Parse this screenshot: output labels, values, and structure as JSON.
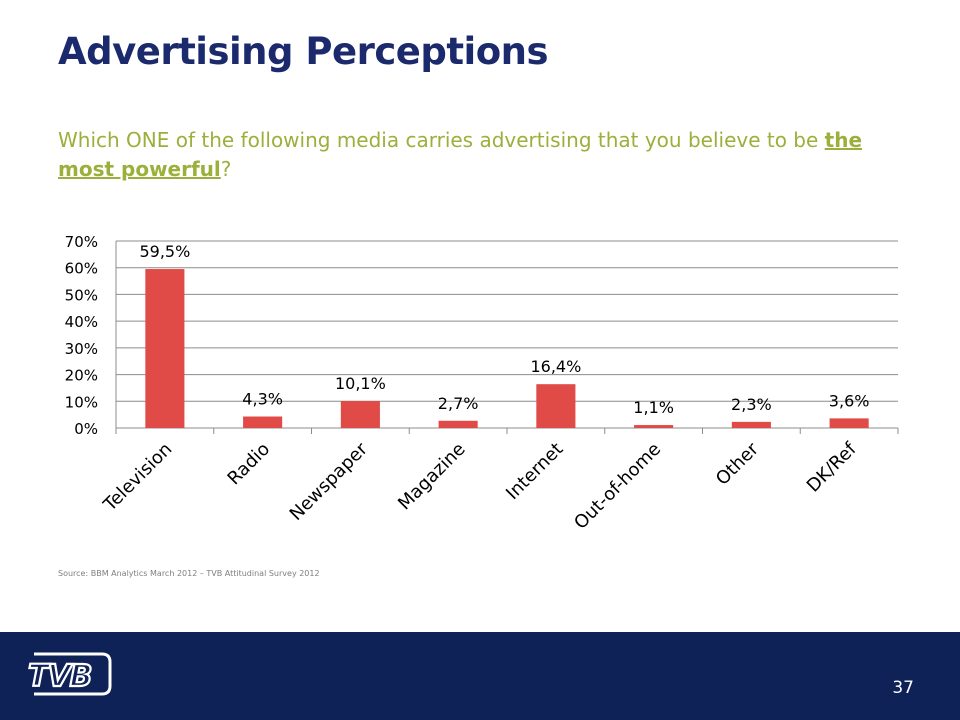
{
  "slide": {
    "title": "Advertising Perceptions",
    "question_before": "Which ONE of the following media carries advertising that you believe to be ",
    "question_emphasis": "the most powerful",
    "question_after": "?",
    "source": "Source: BBM Analytics March 2012 – TVB Attitudinal Survey 2012",
    "slide_number": "37",
    "logo_text": "TVB"
  },
  "colors": {
    "title": "#1a2a6c",
    "question": "#9bb03a",
    "bar": "#e04b48",
    "footer": "#0e2257"
  },
  "chart_data": {
    "type": "bar",
    "categories": [
      "Television",
      "Radio",
      "Newspaper",
      "Magazine",
      "Internet",
      "Out-of-home",
      "Other",
      "DK/Ref"
    ],
    "values": [
      59.5,
      4.3,
      10.1,
      2.7,
      16.4,
      1.1,
      2.3,
      3.6
    ],
    "data_labels": [
      "59,5%",
      "4,3%",
      "10,1%",
      "2,7%",
      "16,4%",
      "1,1%",
      "2,3%",
      "3,6%"
    ],
    "ylim": [
      0,
      70
    ],
    "yticks": [
      0,
      10,
      20,
      30,
      40,
      50,
      60,
      70
    ],
    "ytick_labels": [
      "0%",
      "10%",
      "20%",
      "30%",
      "40%",
      "50%",
      "60%",
      "70%"
    ],
    "grid": true,
    "legend": "none"
  }
}
